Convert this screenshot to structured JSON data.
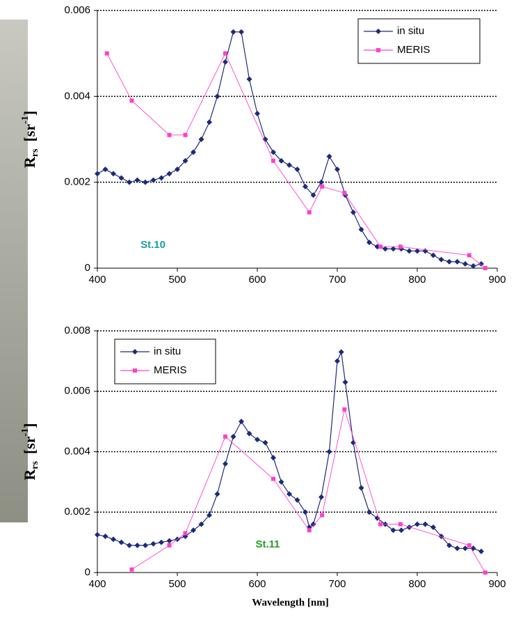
{
  "chart_data": [
    {
      "type": "line",
      "y_label": {
        "base": "R",
        "sub": "rs",
        "unit": "[sr",
        "sup": "-1",
        "close": "]"
      },
      "annotation": {
        "text": "St.10",
        "color": "#1a9e9e"
      },
      "legend": "upper right",
      "grid": true,
      "xlim": [
        400,
        900
      ],
      "xticks": [
        400,
        500,
        600,
        700,
        800,
        900
      ],
      "ylim": [
        0,
        0.006
      ],
      "yticks": [
        0,
        0.002,
        0.004,
        0.006
      ],
      "series": [
        {
          "name": "in situ",
          "color": "#1c2a7a",
          "marker": "diamond",
          "x": [
            400,
            410,
            420,
            430,
            440,
            450,
            460,
            470,
            480,
            490,
            500,
            510,
            520,
            530,
            540,
            550,
            560,
            570,
            580,
            590,
            600,
            610,
            620,
            630,
            640,
            650,
            660,
            670,
            680,
            690,
            700,
            710,
            720,
            730,
            740,
            750,
            760,
            770,
            780,
            790,
            800,
            810,
            820,
            830,
            840,
            850,
            860,
            870,
            880
          ],
          "values": [
            0.0022,
            0.0023,
            0.0022,
            0.0021,
            0.002,
            0.00205,
            0.002,
            0.00205,
            0.0021,
            0.0022,
            0.0023,
            0.0025,
            0.0027,
            0.003,
            0.0034,
            0.004,
            0.0048,
            0.0055,
            0.0055,
            0.0044,
            0.0036,
            0.003,
            0.0027,
            0.0025,
            0.0024,
            0.0023,
            0.0019,
            0.0017,
            0.002,
            0.0026,
            0.0023,
            0.0017,
            0.0013,
            0.0009,
            0.0006,
            0.0005,
            0.00045,
            0.00045,
            0.00045,
            0.0004,
            0.0004,
            0.0004,
            0.0003,
            0.0002,
            0.00015,
            0.00015,
            0.0001,
            5e-05,
            0.0001
          ]
        },
        {
          "name": "MERIS",
          "color": "#ff40cc",
          "marker": "square",
          "x": [
            412,
            443,
            490,
            510,
            560,
            620,
            665,
            681,
            709,
            754,
            779,
            865,
            885
          ],
          "values": [
            0.005,
            0.0039,
            0.0031,
            0.0031,
            0.005,
            0.0025,
            0.0013,
            0.0019,
            0.00175,
            0.0005,
            0.0005,
            0.0003,
            0
          ]
        }
      ]
    },
    {
      "type": "line",
      "y_label": {
        "base": "R",
        "sub": "rs",
        "unit": "[sr",
        "sup": "-1",
        "close": "]"
      },
      "x_label": "Wavelength  [nm]",
      "annotation": {
        "text": "St.11",
        "color": "#22a022"
      },
      "legend": "upper left",
      "grid": true,
      "xlim": [
        400,
        900
      ],
      "xticks": [
        400,
        500,
        600,
        700,
        800,
        900
      ],
      "ylim": [
        0,
        0.008
      ],
      "yticks": [
        0,
        0.002,
        0.004,
        0.006,
        0.008
      ],
      "series": [
        {
          "name": "in situ",
          "color": "#1c2a7a",
          "marker": "diamond",
          "x": [
            400,
            410,
            420,
            430,
            440,
            450,
            460,
            470,
            480,
            490,
            500,
            510,
            520,
            530,
            540,
            550,
            560,
            570,
            580,
            590,
            600,
            610,
            620,
            630,
            640,
            650,
            660,
            665,
            670,
            680,
            690,
            700,
            705,
            710,
            720,
            730,
            740,
            750,
            760,
            770,
            780,
            790,
            800,
            810,
            820,
            830,
            840,
            850,
            860,
            870,
            880
          ],
          "values": [
            0.00125,
            0.0012,
            0.0011,
            0.001,
            0.0009,
            0.0009,
            0.0009,
            0.00095,
            0.001,
            0.00105,
            0.0011,
            0.0012,
            0.0014,
            0.0016,
            0.0019,
            0.0026,
            0.0036,
            0.0045,
            0.005,
            0.0046,
            0.0044,
            0.0043,
            0.0038,
            0.003,
            0.0026,
            0.0024,
            0.002,
            0.0015,
            0.0016,
            0.0025,
            0.004,
            0.007,
            0.0073,
            0.0063,
            0.0043,
            0.0028,
            0.002,
            0.0018,
            0.0016,
            0.0014,
            0.0014,
            0.0015,
            0.0016,
            0.0016,
            0.0015,
            0.0012,
            0.0009,
            0.0008,
            0.0008,
            0.0008,
            0.0007
          ]
        },
        {
          "name": "MERIS",
          "color": "#ff40cc",
          "marker": "square",
          "x": [
            443,
            490,
            510,
            560,
            620,
            665,
            681,
            709,
            754,
            779,
            865,
            885
          ],
          "values": [
            0.0001,
            0.0009,
            0.0013,
            0.0045,
            0.0031,
            0.0014,
            0.0019,
            0.0054,
            0.0016,
            0.0016,
            0.0009,
            0
          ]
        }
      ]
    }
  ]
}
